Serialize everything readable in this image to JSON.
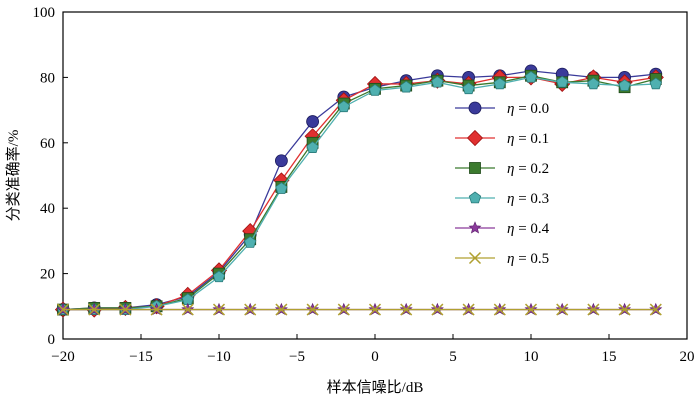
{
  "chart_data": {
    "type": "line",
    "xlabel": "样本信噪比/dB",
    "ylabel": "分类准确率/%",
    "xlim": [
      -20,
      20
    ],
    "ylim": [
      0,
      100
    ],
    "xticks": [
      -20,
      -15,
      -10,
      -5,
      0,
      5,
      10,
      15,
      20
    ],
    "yticks": [
      0,
      20,
      40,
      60,
      80,
      100
    ],
    "grid": false,
    "legend_position": "center-right",
    "x": [
      -20,
      -18,
      -16,
      -14,
      -12,
      -10,
      -8,
      -6,
      -4,
      -2,
      0,
      2,
      4,
      6,
      8,
      10,
      12,
      14,
      16,
      18
    ],
    "series": [
      {
        "name": "η = 0.0",
        "legend_prefix": "η",
        "legend_value": " = 0.0",
        "marker": "circle",
        "color": "#3a3a9a",
        "values": [
          9,
          9.5,
          9.5,
          10.5,
          13,
          20.5,
          32,
          54.5,
          66.5,
          74,
          77,
          79,
          80.5,
          80,
          80.5,
          82,
          81,
          80,
          80,
          81
        ]
      },
      {
        "name": "η = 0.1",
        "legend_prefix": "η",
        "legend_value": " = 0.1",
        "marker": "diamond",
        "color": "#e03030",
        "values": [
          9,
          9,
          9.5,
          10,
          13.5,
          21,
          33,
          48.5,
          62,
          73,
          78,
          78,
          79,
          78,
          80,
          80,
          78,
          80,
          78.5,
          80
        ]
      },
      {
        "name": "η = 0.2",
        "legend_prefix": "η",
        "legend_value": " = 0.2",
        "marker": "square",
        "color": "#3b7a2e",
        "values": [
          9,
          9.5,
          9.5,
          10,
          12.5,
          20,
          30.5,
          46.5,
          60,
          72,
          76.5,
          77.5,
          79,
          77.5,
          78.5,
          80.5,
          78.5,
          79,
          77,
          79.5
        ]
      },
      {
        "name": "η = 0.3",
        "legend_prefix": "η",
        "legend_value": " = 0.3",
        "marker": "pentagon",
        "color": "#4fb0b0",
        "values": [
          9,
          9,
          9,
          10,
          12,
          19,
          29.5,
          46,
          58.5,
          71,
          76,
          77,
          78.5,
          76.5,
          78,
          80,
          78.5,
          78,
          77.5,
          78
        ]
      },
      {
        "name": "η = 0.4",
        "legend_prefix": "η",
        "legend_value": " = 0.4",
        "marker": "star",
        "color": "#8a3a9a",
        "values": [
          9,
          9,
          9,
          9,
          9,
          9,
          9,
          9,
          9,
          9,
          9,
          9,
          9,
          9,
          9,
          9,
          9,
          9,
          9,
          9
        ]
      },
      {
        "name": "η = 0.5",
        "legend_prefix": "η",
        "legend_value": " = 0.5",
        "marker": "x",
        "color": "#b0a030",
        "values": [
          9,
          9,
          9,
          9,
          9,
          9,
          9,
          9,
          9,
          9,
          9,
          9,
          9,
          9,
          9,
          9,
          9,
          9,
          9,
          9
        ]
      }
    ]
  }
}
